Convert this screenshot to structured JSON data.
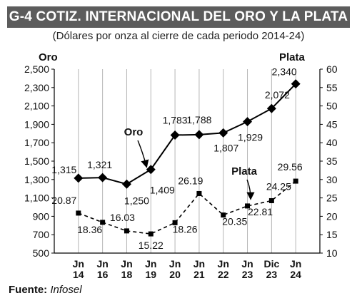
{
  "header": {
    "title": "G-4  COTIZ. INTERNACIONAL DEL ORO Y LA PLATA",
    "subtitle": "(Dólares por onza al cierre de cada periodo 2014-24)"
  },
  "source": {
    "label": "Fuente:",
    "value": "Infosel"
  },
  "chart_data": {
    "type": "line",
    "categories": [
      "Jn 14",
      "Jn 16",
      "Jn 18",
      "Jn 19",
      "Jn 20",
      "Jn 21",
      "Jn 22",
      "Jn 23",
      "Dic 23",
      "Jn 24"
    ],
    "category_lines": [
      [
        "Jn",
        "14"
      ],
      [
        "Jn",
        "16"
      ],
      [
        "Jn",
        "18"
      ],
      [
        "Jn",
        "19"
      ],
      [
        "Jn",
        "20"
      ],
      [
        "Jn",
        "21"
      ],
      [
        "Jn",
        "22"
      ],
      [
        "Jn",
        "23"
      ],
      [
        "Dic",
        "23"
      ],
      [
        "Jn",
        "24"
      ]
    ],
    "left_axis": {
      "label": "Oro",
      "ylim": [
        500,
        2500
      ],
      "ticks": [
        "500",
        "700",
        "900",
        "1,100",
        "1,300",
        "1,500",
        "1,700",
        "1,900",
        "2,100",
        "2,300",
        "2,500"
      ]
    },
    "right_axis": {
      "label": "Plata",
      "ylim": [
        10,
        60
      ],
      "ticks": [
        "10",
        "15",
        "20",
        "25",
        "30",
        "35",
        "40",
        "45",
        "50",
        "55",
        "60"
      ]
    },
    "series": [
      {
        "name": "Oro",
        "axis": "left",
        "style": "solid",
        "marker": "diamond",
        "values": [
          1315,
          1321,
          1250,
          1409,
          1783,
          1788,
          1807,
          1929,
          2072,
          2340
        ],
        "labels": [
          "1,315",
          "1,321",
          "1,250",
          "1,409",
          "1,783",
          "1,788",
          "1,807",
          "1,929",
          "2,072",
          "2,340"
        ]
      },
      {
        "name": "Plata",
        "axis": "right",
        "style": "dashed",
        "marker": "square",
        "values": [
          20.87,
          18.36,
          16.03,
          15.22,
          18.26,
          26.19,
          20.35,
          22.81,
          24.25,
          29.56
        ],
        "labels": [
          "20.87",
          "18.36",
          "16.03",
          "15.22",
          "18.26",
          "26.19",
          "20.35",
          "22.81",
          "24.25",
          "29.56"
        ]
      }
    ],
    "grid": {
      "vertical": true,
      "horizontal": false
    },
    "colors": {
      "line": "#000000",
      "grid": "#b5b5b5",
      "title_bg": "#5c5c5c"
    }
  }
}
